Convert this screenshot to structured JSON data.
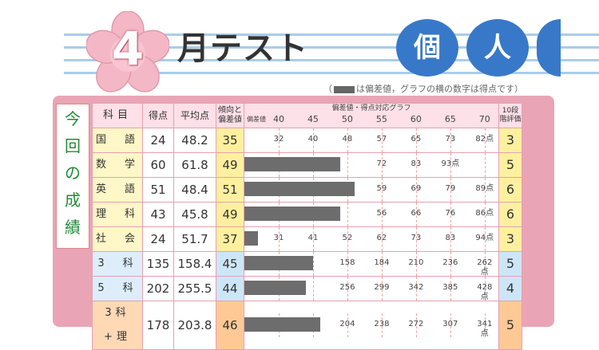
{
  "header": {
    "month_number": "4",
    "title": "月テスト",
    "badges": [
      "個",
      "人"
    ]
  },
  "note": {
    "prefix": "（",
    "text": "は偏差値，グラフの横の数字は得点です）"
  },
  "side_label": [
    "今",
    "回",
    "の",
    "成",
    "績"
  ],
  "table": {
    "headers": {
      "subject": "科目",
      "score": "得点",
      "average": "平均点",
      "deviation": "傾向と偏差値",
      "graph": "偏差値・得点対応グラフ",
      "graph_sub": "偏差値",
      "evaluation": "10段階評価"
    },
    "ticks": [
      "40",
      "45",
      "50",
      "55",
      "60",
      "65",
      "70"
    ],
    "rows": [
      {
        "subject": "国　語",
        "score": "24",
        "average": "48.2",
        "deviation": "35",
        "eval": "3",
        "group": "a",
        "score_labels": [
          "32",
          "40",
          "48",
          "57",
          "65",
          "73",
          "82点"
        ]
      },
      {
        "subject": "数　学",
        "score": "60",
        "average": "61.8",
        "deviation": "49",
        "eval": "5",
        "group": "a",
        "score_labels": [
          "",
          "",
          "",
          "72",
          "83",
          "93点",
          ""
        ]
      },
      {
        "subject": "英　語",
        "score": "51",
        "average": "48.4",
        "deviation": "51",
        "eval": "6",
        "group": "a",
        "score_labels": [
          "",
          "",
          "",
          "59",
          "69",
          "79",
          "89点"
        ]
      },
      {
        "subject": "理　科",
        "score": "43",
        "average": "45.8",
        "deviation": "49",
        "eval": "6",
        "group": "a",
        "score_labels": [
          "",
          "",
          "",
          "56",
          "66",
          "76",
          "86点"
        ]
      },
      {
        "subject": "社　会",
        "score": "24",
        "average": "51.7",
        "deviation": "37",
        "eval": "3",
        "group": "a",
        "score_labels": [
          "31",
          "41",
          "52",
          "62",
          "73",
          "83",
          "94点"
        ]
      },
      {
        "subject": "3　科",
        "score": "135",
        "average": "158.4",
        "deviation": "45",
        "eval": "5",
        "group": "b",
        "score_labels": [
          "",
          "",
          "158",
          "184",
          "210",
          "236",
          "262点"
        ]
      },
      {
        "subject": "5　科",
        "score": "202",
        "average": "255.5",
        "deviation": "44",
        "eval": "4",
        "group": "b",
        "score_labels": [
          "",
          "",
          "256",
          "299",
          "342",
          "385",
          "428点"
        ]
      },
      {
        "subject": "3科+理",
        "score": "178",
        "average": "203.8",
        "deviation": "46",
        "eval": "5",
        "group": "c",
        "score_labels": [
          "",
          "",
          "204",
          "238",
          "272",
          "307",
          "341点"
        ]
      }
    ]
  },
  "chart_data": {
    "type": "bar",
    "title": "偏差値・得点対応グラフ",
    "categories": [
      "国語",
      "数学",
      "英語",
      "理科",
      "社会",
      "3科",
      "5科",
      "3科+理"
    ],
    "values": [
      35,
      49,
      51,
      49,
      37,
      45,
      44,
      46
    ],
    "xlabel": "偏差値",
    "xlim": [
      35,
      72
    ],
    "ticks": [
      40,
      45,
      50,
      55,
      60,
      65,
      70
    ]
  },
  "colors": {
    "panel": "#e9a5b6",
    "bar": "#6d6d6d",
    "badge": "#3878c8",
    "side_text": "#228b3a"
  }
}
